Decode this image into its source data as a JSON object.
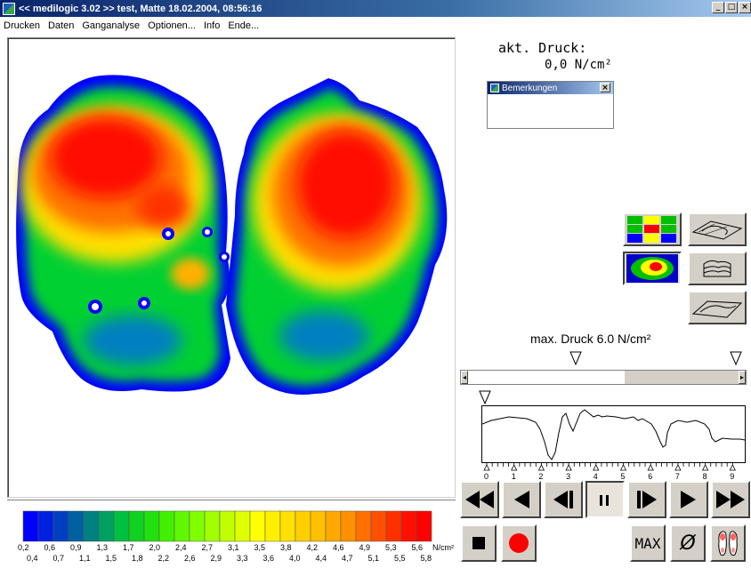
{
  "window": {
    "title": "<< medilogic 3.02 >>  test, Matte  18.02.2004, 08:56:16",
    "buttons": [
      "_",
      "□",
      "×"
    ]
  },
  "menu": {
    "items": [
      "Drucken",
      "Daten",
      "Ganganalyse",
      "Optionen...",
      "Info",
      "Ende..."
    ]
  },
  "current_pressure": {
    "label": "akt. Druck:",
    "value": "0,0 N/cm²"
  },
  "notes_window": {
    "title": "Bemerkungen",
    "close": "×"
  },
  "max_pressure": {
    "label": "max. Druck 6.0 N/cm²"
  },
  "slider": {
    "left_arrow": "◂",
    "right_arrow": "▸"
  },
  "timeline": {
    "ticks": [
      "0",
      "1",
      "2",
      "3",
      "4",
      "5",
      "6",
      "7",
      "8",
      "9"
    ]
  },
  "legend": {
    "unit": "N/cm²",
    "top_labels": [
      "0,2",
      "0,6",
      "0,9",
      "1,3",
      "1,7",
      "2,0",
      "2,4",
      "2,7",
      "3,1",
      "3,5",
      "3,8",
      "4,2",
      "4,6",
      "4,9",
      "5,3",
      "5,6"
    ],
    "bottom_labels": [
      "0,4",
      "0,7",
      "1,1",
      "1,5",
      "1,8",
      "2,2",
      "2,6",
      "2,9",
      "3,3",
      "3,6",
      "4,0",
      "4,4",
      "4,7",
      "5,1",
      "5,5",
      "5,8"
    ],
    "colors": [
      "#0000ff",
      "#0020e0",
      "#0040c0",
      "#0060a0",
      "#008080",
      "#00a060",
      "#00c040",
      "#10d020",
      "#20e010",
      "#40f000",
      "#60f800",
      "#80ff00",
      "#a0ff00",
      "#c0ff00",
      "#e0ff00",
      "#ffff00",
      "#fff000",
      "#ffe000",
      "#ffd000",
      "#ffc000",
      "#ffa800",
      "#ff9000",
      "#ff7000",
      "#ff5000",
      "#ff3000",
      "#ff1000",
      "#ff0000"
    ]
  },
  "playback": {
    "max_label": "MAX",
    "average_label": "Ø"
  },
  "colors": {
    "title_bar": "#0a246a",
    "button_face": "#d4d0c8",
    "record_red": "#ff0000"
  }
}
